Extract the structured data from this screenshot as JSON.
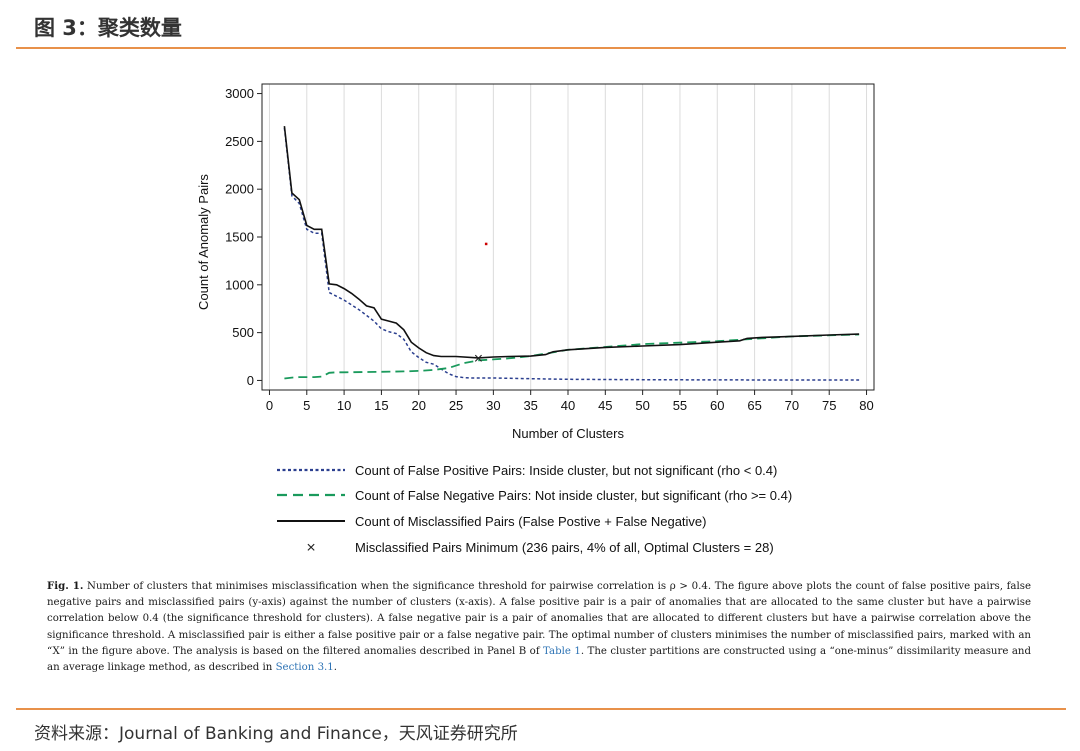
{
  "header": {
    "title": "图 3：聚类数量"
  },
  "chart_data": {
    "type": "line",
    "xlabel": "Number of Clusters",
    "ylabel": "Count of Anomaly Pairs",
    "xlim": [
      -1,
      81
    ],
    "ylim": [
      -100,
      3100
    ],
    "xticks": [
      0,
      5,
      10,
      15,
      20,
      25,
      30,
      35,
      40,
      45,
      50,
      55,
      60,
      65,
      70,
      75,
      80
    ],
    "yticks": [
      0,
      500,
      1000,
      1500,
      2000,
      2500,
      3000
    ],
    "grid": true,
    "legend_position": "bottom",
    "series": [
      {
        "name": "Count of False Positive Pairs: Inside cluster, but not significant (rho < 0.4)",
        "style": "dotted",
        "color": "#2b3f8f",
        "x": [
          2,
          3,
          4,
          5,
          6,
          7,
          8,
          9,
          10,
          11,
          12,
          13,
          14,
          15,
          16,
          17,
          18,
          19,
          20,
          21,
          22,
          23,
          24,
          25,
          26,
          27,
          28,
          30,
          35,
          40,
          50,
          60,
          70,
          79
        ],
        "y": [
          2640,
          1930,
          1850,
          1580,
          1540,
          1540,
          920,
          880,
          840,
          790,
          740,
          680,
          620,
          540,
          510,
          490,
          430,
          300,
          240,
          190,
          170,
          120,
          70,
          40,
          30,
          25,
          25,
          25,
          18,
          12,
          8,
          6,
          5,
          5
        ]
      },
      {
        "name": "Count of False Negative Pairs: Not inside cluster, but significant (rho >= 0.4)",
        "style": "dashed",
        "color": "#1a9a5c",
        "x": [
          2,
          3,
          4,
          5,
          6,
          7,
          8,
          9,
          10,
          15,
          18,
          20,
          22,
          24,
          26,
          28,
          30,
          32,
          35,
          40,
          50,
          60,
          70,
          79
        ],
        "y": [
          20,
          30,
          35,
          35,
          35,
          40,
          80,
          85,
          85,
          90,
          95,
          100,
          110,
          130,
          180,
          210,
          220,
          230,
          255,
          320,
          380,
          410,
          460,
          480
        ]
      },
      {
        "name": "Count of Misclassified Pairs (False Postive + False Negative)",
        "style": "solid",
        "color": "#111111",
        "x": [
          2,
          3,
          4,
          5,
          6,
          7,
          8,
          9,
          10,
          11,
          12,
          13,
          14,
          15,
          16,
          17,
          18,
          19,
          20,
          21,
          22,
          23,
          25,
          28,
          30,
          32,
          35,
          37,
          38,
          40,
          45,
          50,
          55,
          60,
          63,
          64,
          66,
          70,
          75,
          79
        ],
        "y": [
          2660,
          1960,
          1890,
          1620,
          1580,
          1580,
          1010,
          1000,
          960,
          910,
          850,
          780,
          760,
          640,
          620,
          600,
          530,
          400,
          340,
          290,
          260,
          250,
          250,
          236,
          245,
          250,
          255,
          270,
          300,
          320,
          345,
          360,
          375,
          400,
          415,
          440,
          450,
          460,
          475,
          485
        ]
      }
    ],
    "marker": {
      "name": "Misclassified Pairs Minimum (236 pairs, 4% of all, Optimal Clusters = 28)",
      "x": 28,
      "y": 236,
      "symbol": "×"
    },
    "stray_point": {
      "x": 29,
      "y": 1430,
      "color": "#cc0000"
    }
  },
  "caption": {
    "fig_label": "Fig. 1.",
    "part1": "Number of clusters that minimises misclassification when the significance threshold for pairwise correlation is ρ > 0.4. The figure above plots the count of false positive pairs, false negative pairs and misclassified pairs (y-axis) against the number of clusters (x-axis). A false positive pair is a pair of anomalies that are allocated to the same cluster but have a pairwise correlation below 0.4 (the significance threshold for clusters). A false negative pair is a pair of anomalies that are allocated to different clusters but have a pairwise correlation above the significance threshold. A misclassified pair is either a false positive pair or a false negative pair. The optimal number of clusters minimises the number of misclassified pairs, marked with an “X” in the figure above. The analysis is based on the filtered anomalies described in Panel B of ",
    "link1": "Table 1",
    "part2": ". The cluster partitions are constructed using a “one-minus” dissimilarity measure and an average linkage method, as described in ",
    "link2": "Section 3.1",
    "part3": "."
  },
  "source": {
    "text": "资料来源：Journal of Banking and Finance，天风证券研究所"
  }
}
